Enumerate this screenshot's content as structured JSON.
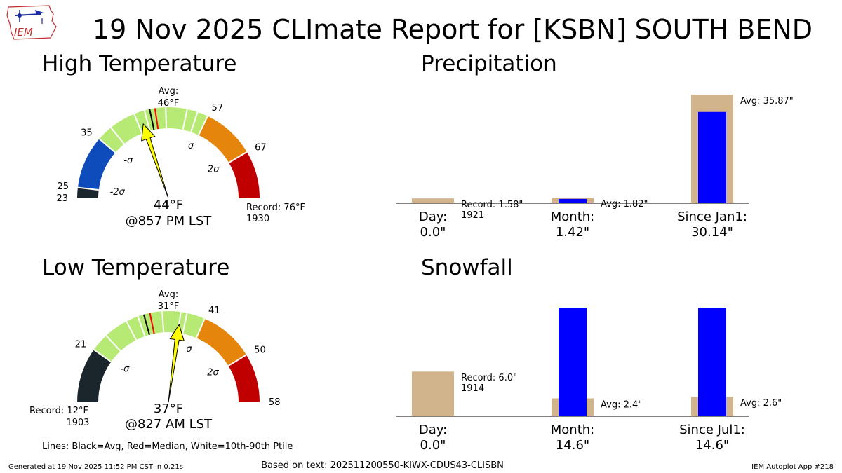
{
  "title": "19 Nov 2025 CLImate Report for [KSBN] SOUTH BEND",
  "logo": {
    "text": "IEM",
    "icon": "iem-iowa-logo"
  },
  "colors": {
    "sigma_low": "#1b262c",
    "sigma_blue": "#0e4bbb",
    "normal": "#b7ea74",
    "orange": "#e5850b",
    "red": "#c00000",
    "tan": "#d2b48c",
    "obs": "#0000ff",
    "needle": "#ffff00",
    "avg_line": "#000000",
    "median_line": "#ff0000"
  },
  "chart_data": [
    {
      "type": "gauge",
      "name": "high",
      "title": "High Temperature",
      "range": [
        23,
        76
      ],
      "bands": [
        {
          "from": 23,
          "to": 25,
          "color": "#1b262c"
        },
        {
          "from": 25,
          "to": 35,
          "color": "#0e4bbb"
        },
        {
          "from": 35,
          "to": 57,
          "color": "#b7ea74"
        },
        {
          "from": 57,
          "to": 67,
          "color": "#e5850b"
        },
        {
          "from": 67,
          "to": 76,
          "color": "#c00000"
        }
      ],
      "ticks": [
        {
          "value": 23,
          "label": "23"
        },
        {
          "value": 25,
          "label": "25"
        },
        {
          "value": 35,
          "label": "35"
        },
        {
          "value": 57,
          "label": "57"
        },
        {
          "value": 67,
          "label": "67"
        }
      ],
      "sigma_labels": [
        {
          "value": 25,
          "label": "-2σ"
        },
        {
          "value": 35,
          "label": "-σ"
        },
        {
          "value": 57,
          "label": "σ"
        },
        {
          "value": 67,
          "label": "2σ"
        }
      ],
      "white_lines": [
        38,
        43,
        45,
        49,
        53,
        55
      ],
      "avg": 46,
      "median": 47,
      "observed": 44,
      "avg_label": "Avg:",
      "avg_value": "46°F",
      "obs_label": "44°F",
      "time_label": "@857 PM LST",
      "record_label": "Record: 76°F",
      "record_year": "1930",
      "record_side": "right"
    },
    {
      "type": "gauge",
      "name": "low",
      "title": "Low Temperature",
      "range": [
        12,
        58
      ],
      "bands": [
        {
          "from": 12,
          "to": 21,
          "color": "#1b262c"
        },
        {
          "from": 21,
          "to": 41,
          "color": "#b7ea74"
        },
        {
          "from": 41,
          "to": 50,
          "color": "#e5850b"
        },
        {
          "from": 50,
          "to": 58,
          "color": "#c00000"
        }
      ],
      "ticks": [
        {
          "value": 21,
          "label": "21"
        },
        {
          "value": 41,
          "label": "41"
        },
        {
          "value": 50,
          "label": "50"
        },
        {
          "value": 58,
          "label": "58"
        }
      ],
      "sigma_labels": [
        {
          "value": 21,
          "label": "-σ"
        },
        {
          "value": 41,
          "label": "σ"
        },
        {
          "value": 50,
          "label": "2σ"
        }
      ],
      "white_lines": [
        24,
        28,
        30,
        34,
        37,
        38
      ],
      "avg": 31,
      "median": 32,
      "observed": 37,
      "avg_label": "Avg:",
      "avg_value": "31°F",
      "obs_label": "37°F",
      "time_label": "@827 AM LST",
      "record_label": "Record: 12°F",
      "record_year": "1903",
      "record_side": "left"
    },
    {
      "type": "bar",
      "name": "precip",
      "title": "Precipitation",
      "categories": [
        {
          "label": "Day:",
          "value_label": "0.0\""
        },
        {
          "label": "Month:",
          "value_label": "1.42\""
        },
        {
          "label": "Since Jan1:",
          "value_label": "30.14\""
        }
      ],
      "reference": [
        1.58,
        1.82,
        35.87
      ],
      "observed": [
        0.0,
        1.42,
        30.14
      ],
      "annotations": [
        {
          "line1": "Record: 1.58\"",
          "line2": "1921"
        },
        {
          "line1": "Avg: 1.82\"",
          "line2": ""
        },
        {
          "line1": "Avg: 35.87\"",
          "line2": ""
        }
      ]
    },
    {
      "type": "bar",
      "name": "snow",
      "title": "Snowfall",
      "categories": [
        {
          "label": "Day:",
          "value_label": "0.0\""
        },
        {
          "label": "Month:",
          "value_label": "14.6\""
        },
        {
          "label": "Since Jul1:",
          "value_label": "14.6\""
        }
      ],
      "reference": [
        6.0,
        2.4,
        2.6
      ],
      "observed": [
        0.0,
        14.6,
        14.6
      ],
      "annotations": [
        {
          "line1": "Record: 6.0\"",
          "line2": "1914"
        },
        {
          "line1": "Avg: 2.4\"",
          "line2": ""
        },
        {
          "line1": "Avg: 2.6\"",
          "line2": ""
        }
      ]
    }
  ],
  "legend_text": "Lines: Black=Avg, Red=Median, White=10th-90th Ptile",
  "footer": {
    "generated": "Generated at 19 Nov 2025 11:52 PM CST in 0.21s",
    "based_on": "Based on text: 202511200550-KIWX-CDUS43-CLISBN",
    "app": "IEM Autoplot App #218"
  }
}
